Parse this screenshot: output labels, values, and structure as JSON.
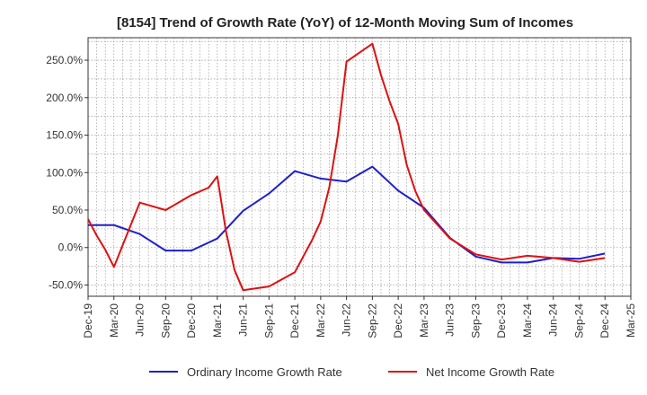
{
  "chart_data": {
    "type": "line",
    "title": "[8154]  Trend of Growth Rate (YoY) of 12-Month Moving Sum of Incomes",
    "xlabel": "",
    "ylabel": "",
    "ylim": [
      -65,
      280
    ],
    "yticks": [
      -50,
      0,
      50,
      100,
      150,
      200,
      250
    ],
    "ytick_labels": [
      "-50.0%",
      "0.0%",
      "50.0%",
      "100.0%",
      "150.0%",
      "200.0%",
      "250.0%"
    ],
    "x_tick_labels": [
      "Dec-19",
      "Mar-20",
      "Jun-20",
      "Sep-20",
      "Dec-20",
      "Mar-21",
      "Jun-21",
      "Sep-21",
      "Dec-21",
      "Mar-22",
      "Jun-22",
      "Sep-22",
      "Dec-22",
      "Mar-23",
      "Jun-23",
      "Sep-23",
      "Dec-23",
      "Mar-24",
      "Jun-24",
      "Sep-24",
      "Dec-24",
      "Mar-25"
    ],
    "x_months": [
      "2019-12",
      "2020-01",
      "2020-02",
      "2020-03",
      "2020-04",
      "2020-05",
      "2020-06",
      "2020-07",
      "2020-08",
      "2020-09",
      "2020-10",
      "2020-11",
      "2020-12",
      "2021-01",
      "2021-02",
      "2021-03",
      "2021-04",
      "2021-05",
      "2021-06",
      "2021-07",
      "2021-08",
      "2021-09",
      "2021-10",
      "2021-11",
      "2021-12",
      "2022-01",
      "2022-02",
      "2022-03",
      "2022-04",
      "2022-05",
      "2022-06",
      "2022-07",
      "2022-08",
      "2022-09",
      "2022-10",
      "2022-11",
      "2022-12",
      "2023-01",
      "2023-02",
      "2023-03",
      "2023-04",
      "2023-05",
      "2023-06",
      "2023-07",
      "2023-08",
      "2023-09",
      "2023-10",
      "2023-11",
      "2023-12",
      "2024-01",
      "2024-02",
      "2024-03",
      "2024-04",
      "2024-05",
      "2024-06",
      "2024-07",
      "2024-08",
      "2024-09",
      "2024-10",
      "2024-11",
      "2024-12"
    ],
    "grid": true,
    "legend_position": "bottom",
    "series": [
      {
        "name": "Ordinary Income Growth Rate",
        "color": "#1f1fcc",
        "values": [
          30,
          null,
          null,
          30,
          null,
          null,
          18,
          null,
          null,
          -4,
          null,
          null,
          -4,
          null,
          null,
          12,
          null,
          null,
          49,
          null,
          null,
          72,
          null,
          null,
          102,
          null,
          null,
          92,
          null,
          null,
          88,
          null,
          null,
          108,
          null,
          null,
          76,
          null,
          null,
          53,
          null,
          null,
          13,
          null,
          null,
          -12,
          null,
          null,
          -20,
          null,
          null,
          -20,
          null,
          null,
          -14,
          null,
          null,
          -15,
          null,
          null,
          -8
        ]
      },
      {
        "name": "Net Income Growth Rate",
        "color": "#e01010",
        "values": [
          38,
          16,
          -3,
          -26,
          null,
          null,
          60,
          null,
          null,
          50,
          null,
          null,
          70,
          null,
          80,
          95,
          22,
          -30,
          -57,
          null,
          null,
          -52,
          null,
          null,
          -33,
          null,
          10,
          35,
          80,
          150,
          248,
          null,
          null,
          272,
          230,
          195,
          165,
          110,
          75,
          50,
          null,
          null,
          12,
          null,
          null,
          -9,
          null,
          null,
          -16,
          null,
          null,
          -11,
          null,
          null,
          -14,
          null,
          null,
          -19,
          null,
          null,
          -14
        ]
      }
    ]
  }
}
